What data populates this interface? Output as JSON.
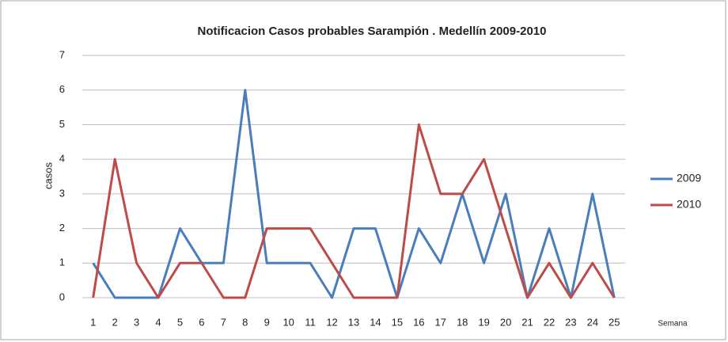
{
  "chart_data": {
    "type": "line",
    "title": "Notificacion Casos probables Sarampión . Medellín  2009-2010",
    "y_label": "casos",
    "x_label": "Semana",
    "categories": [
      "1",
      "2",
      "3",
      "4",
      "5",
      "6",
      "7",
      "8",
      "9",
      "10",
      "11",
      "12",
      "13",
      "14",
      "15",
      "16",
      "17",
      "18",
      "19",
      "20",
      "21",
      "22",
      "23",
      "24",
      "25"
    ],
    "series": [
      {
        "name": "2009",
        "color": "#4a7ebb",
        "values": [
          1,
          0,
          0,
          0,
          2,
          1,
          1,
          6,
          1,
          1,
          1,
          0,
          2,
          2,
          0,
          2,
          1,
          3,
          1,
          3,
          0,
          2,
          0,
          3,
          0
        ]
      },
      {
        "name": "2010",
        "color": "#be4b48",
        "values": [
          0,
          4,
          1,
          0,
          1,
          1,
          0,
          0,
          2,
          2,
          2,
          1,
          0,
          0,
          0,
          5,
          3,
          3,
          4,
          2,
          0,
          1,
          0,
          1,
          0
        ]
      }
    ],
    "ylim": [
      0,
      7
    ],
    "yticks": [
      0,
      1,
      2,
      3,
      4,
      5,
      6,
      7
    ],
    "grid": true,
    "legend": "right"
  }
}
